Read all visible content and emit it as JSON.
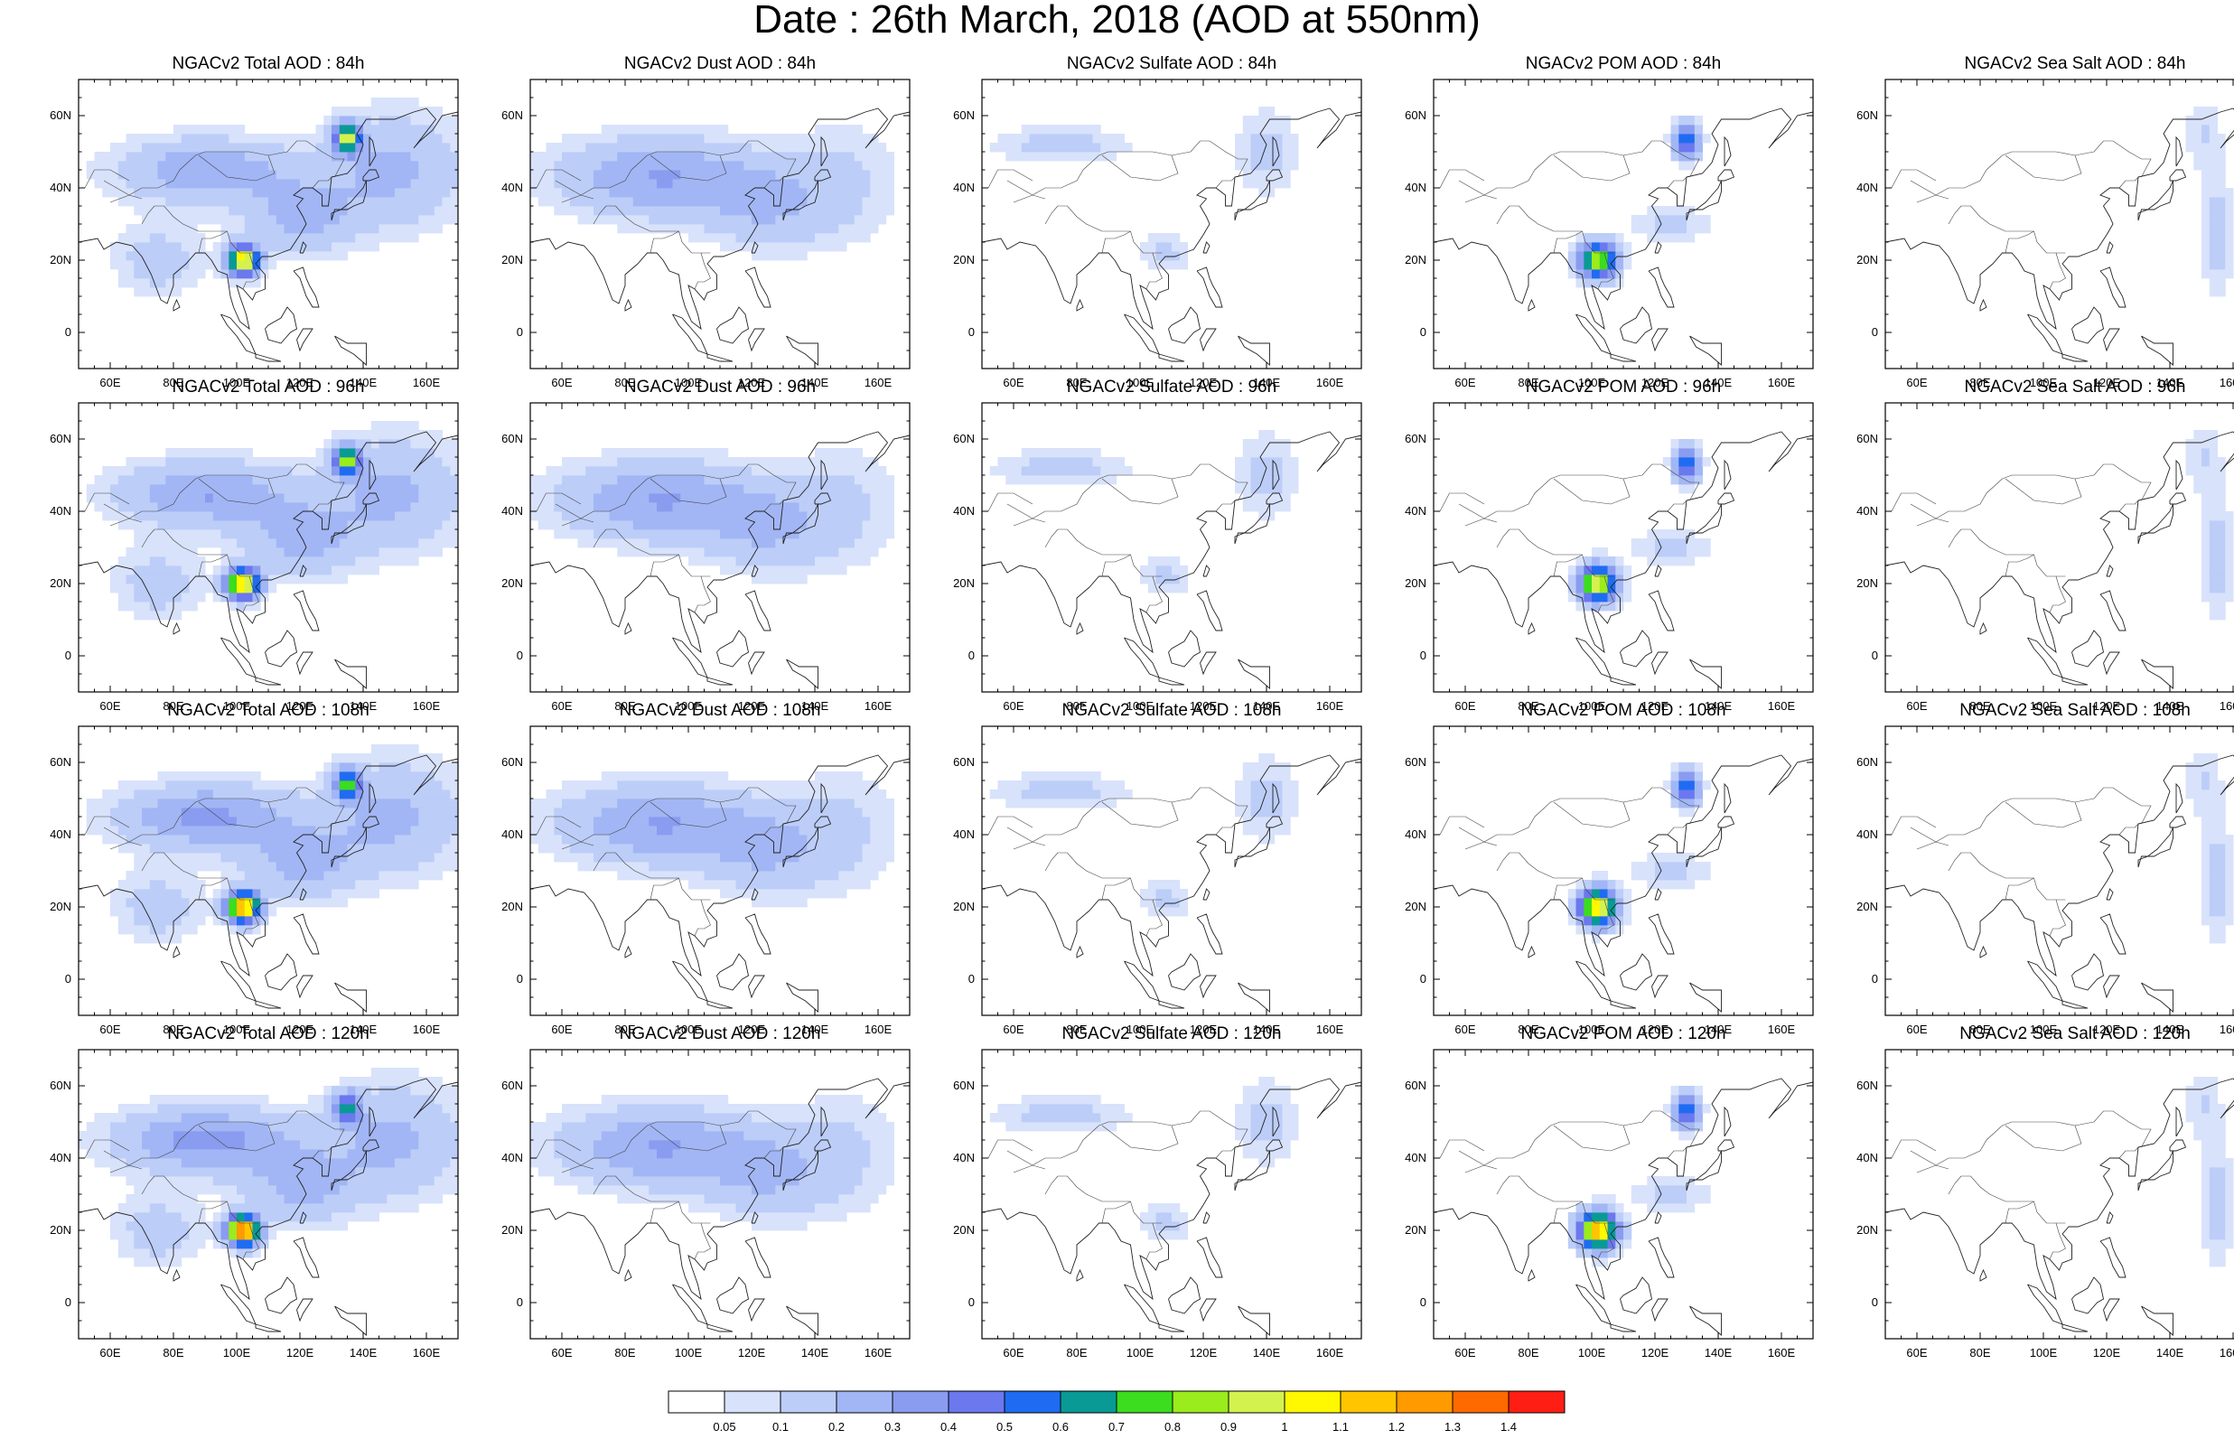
{
  "title": "Date : 26th March, 2018 (AOD at 550nm)",
  "lon_ticks": [
    "60E",
    "80E",
    "100E",
    "120E",
    "140E",
    "160E"
  ],
  "lat_ticks": [
    "60N",
    "40N",
    "20N",
    "0"
  ],
  "map_extent": {
    "lon": [
      50,
      170
    ],
    "lat": [
      -10,
      70
    ]
  },
  "species": [
    "Total",
    "Dust",
    "Sulfate",
    "POM",
    "Sea Salt"
  ],
  "forecast_hours": [
    "84h",
    "96h",
    "108h",
    "120h"
  ],
  "panels": [
    [
      "NGACv2 Total AOD : 84h",
      "NGACv2 Dust AOD : 84h",
      "NGACv2 Sulfate AOD : 84h",
      "NGACv2 POM AOD : 84h",
      "NGACv2 Sea Salt AOD : 84h"
    ],
    [
      "NGACv2 Total AOD : 96h",
      "NGACv2 Dust AOD : 96h",
      "NGACv2 Sulfate AOD : 96h",
      "NGACv2 POM AOD : 96h",
      "NGACv2 Sea Salt AOD : 96h"
    ],
    [
      "NGACv2 Total AOD : 108h",
      "NGACv2 Dust AOD : 108h",
      "NGACv2 Sulfate AOD : 108h",
      "NGACv2 POM AOD : 108h",
      "NGACv2 Sea Salt AOD : 108h"
    ],
    [
      "NGACv2 Total AOD : 120h",
      "NGACv2 Dust AOD : 120h",
      "NGACv2 Sulfate AOD : 120h",
      "NGACv2 POM AOD : 120h",
      "NGACv2 Sea Salt  AOD : 120h"
    ]
  ],
  "colorbar": {
    "labels": [
      "0.05",
      "0.1",
      "0.2",
      "0.3",
      "0.4",
      "0.5",
      "0.6",
      "0.7",
      "0.8",
      "0.9",
      "1",
      "1.1",
      "1.2",
      "1.3",
      "1.4"
    ],
    "colors": [
      "#ffffff",
      "#d8e2fb",
      "#bccdf8",
      "#a2b6f5",
      "#8a9cf0",
      "#6b78ee",
      "#1f6cf2",
      "#0a9a96",
      "#3cdc1e",
      "#9aec1c",
      "#d4f24e",
      "#fff800",
      "#ffc600",
      "#ff9a00",
      "#ff6a00",
      "#ff1e14"
    ]
  }
}
